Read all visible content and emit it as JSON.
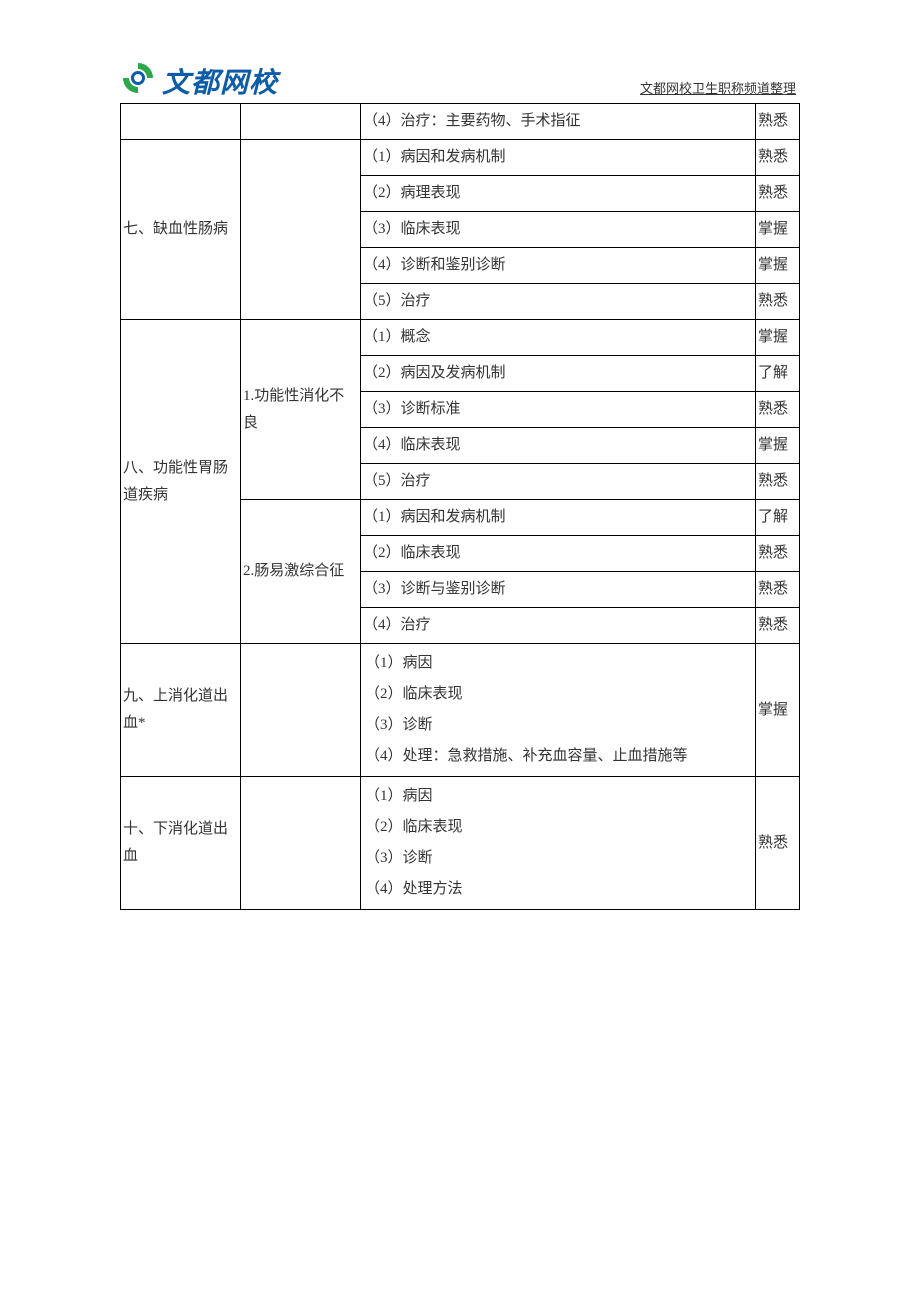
{
  "header": {
    "logo_text": "文都网校",
    "note": "文都网校卫生职称频道整理",
    "logo_colors": {
      "green": "#2aa84a",
      "blue": "#0d5ca8"
    }
  },
  "table": {
    "sections": [
      {
        "col1": "",
        "groups": [
          {
            "col2": "",
            "rows": [
              {
                "detail": "（4）治疗：主要药物、手术指征",
                "level": "熟悉"
              }
            ]
          }
        ]
      },
      {
        "col1": "七、缺血性肠病",
        "groups": [
          {
            "col2": "",
            "rows": [
              {
                "detail": "（1）病因和发病机制",
                "level": "熟悉"
              },
              {
                "detail": "（2）病理表现",
                "level": "熟悉"
              },
              {
                "detail": "（3）临床表现",
                "level": "掌握"
              },
              {
                "detail": "（4）诊断和鉴别诊断",
                "level": "掌握"
              },
              {
                "detail": "（5）治疗",
                "level": "熟悉"
              }
            ]
          }
        ]
      },
      {
        "col1": "八、功能性胃肠道疾病",
        "groups": [
          {
            "col2": "1.功能性消化不良",
            "rows": [
              {
                "detail": "（1）概念",
                "level": "掌握"
              },
              {
                "detail": "（2）病因及发病机制",
                "level": "了解"
              },
              {
                "detail": "（3）诊断标准",
                "level": "熟悉"
              },
              {
                "detail": "（4）临床表现",
                "level": "掌握"
              },
              {
                "detail": "（5）治疗",
                "level": "熟悉"
              }
            ]
          },
          {
            "col2": "2.肠易激综合征",
            "rows": [
              {
                "detail": "（1）病因和发病机制",
                "level": "了解"
              },
              {
                "detail": "（2）临床表现",
                "level": "熟悉"
              },
              {
                "detail": "（3）诊断与鉴别诊断",
                "level": "熟悉"
              },
              {
                "detail": "（4）治疗",
                "level": "熟悉"
              }
            ]
          }
        ]
      },
      {
        "col1": "九、上消化道出血*",
        "groups": [
          {
            "col2": "",
            "merged_level": "掌握",
            "merged_details": [
              "（1）病因",
              "（2）临床表现",
              "（3）诊断",
              "（4）处理：急救措施、补充血容量、止血措施等"
            ]
          }
        ]
      },
      {
        "col1": "十、下消化道出血",
        "groups": [
          {
            "col2": "",
            "merged_level": "熟悉",
            "merged_details": [
              "（1）病因",
              "（2）临床表现",
              "（3）诊断",
              "（4）处理方法"
            ]
          }
        ]
      }
    ]
  }
}
